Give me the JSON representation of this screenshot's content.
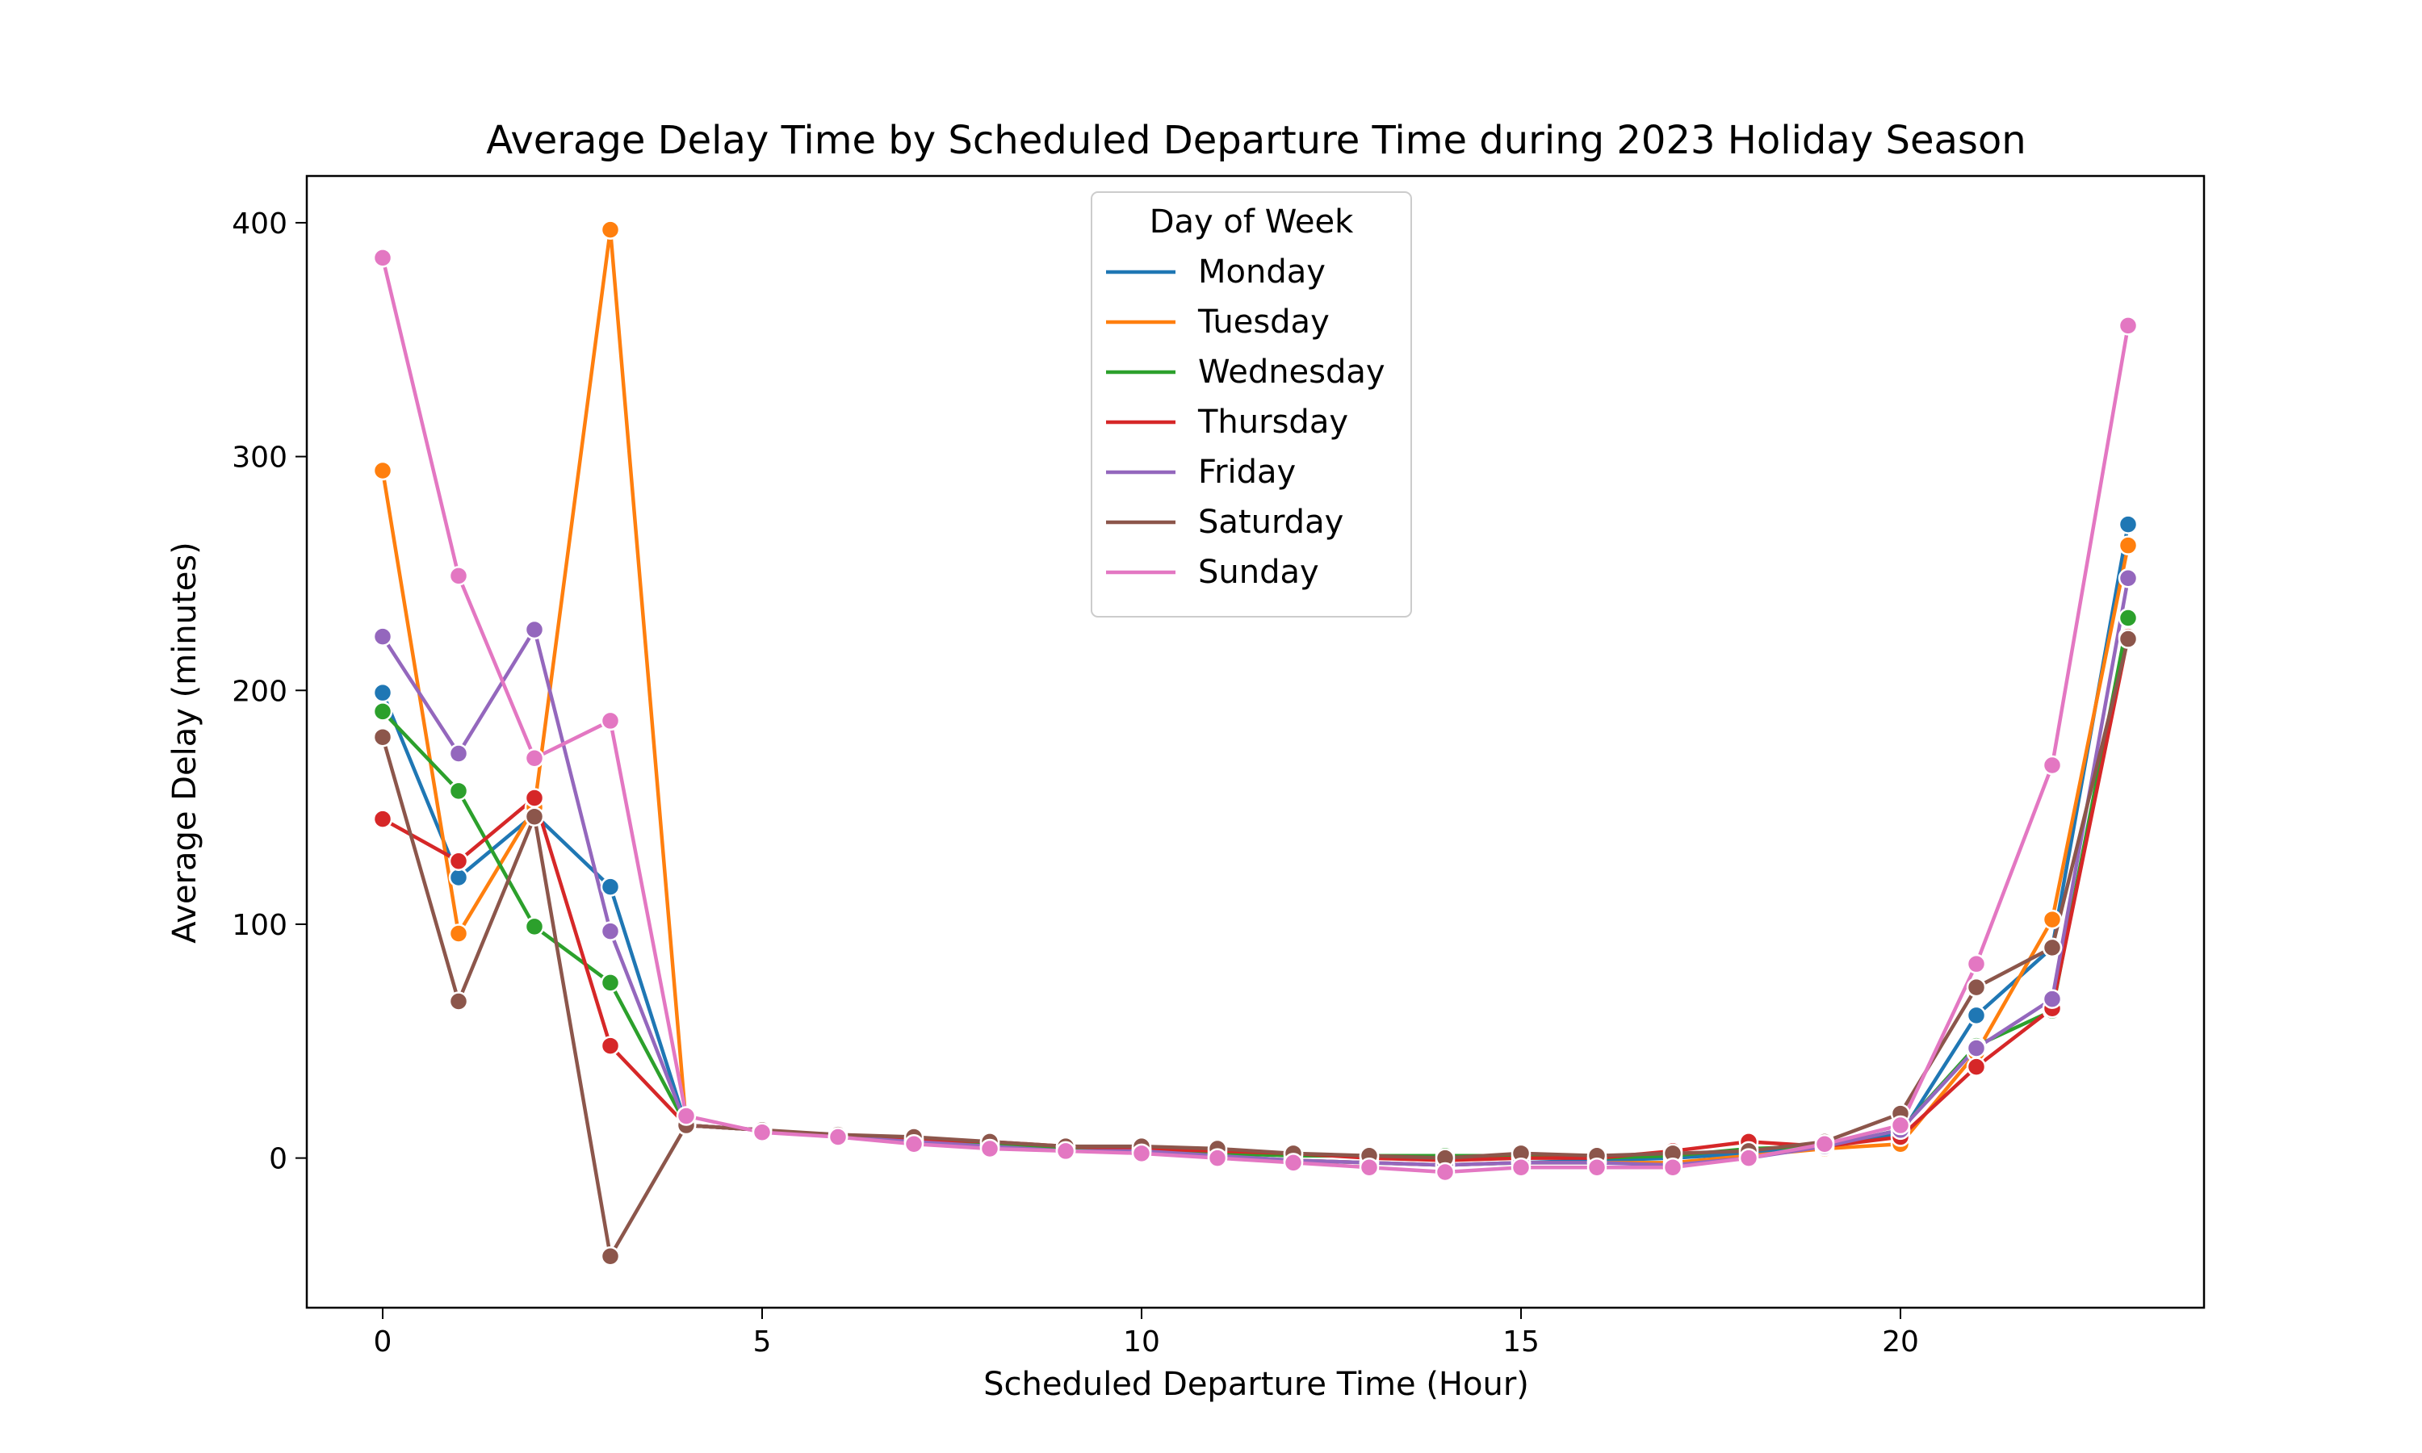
{
  "chart_data": {
    "type": "line",
    "title": "Average Delay Time by Scheduled Departure Time during 2023 Holiday Season",
    "xlabel": "Scheduled Departure Time (Hour)",
    "ylabel": "Average Delay (minutes)",
    "xlim": [
      -1,
      24
    ],
    "ylim": [
      -64,
      420
    ],
    "xticks": [
      0,
      5,
      10,
      15,
      20
    ],
    "yticks": [
      0,
      100,
      200,
      300,
      400
    ],
    "legend_title": "Day of Week",
    "legend_position": "upper center",
    "grid": false,
    "x": [
      0,
      1,
      2,
      3,
      4,
      5,
      6,
      7,
      8,
      9,
      10,
      11,
      12,
      13,
      14,
      15,
      16,
      17,
      18,
      19,
      20,
      21,
      22,
      23
    ],
    "series": [
      {
        "name": "Monday",
        "color": "#1f77b4",
        "values": [
          199,
          120,
          147,
          116,
          14,
          12,
          9,
          7,
          5,
          3,
          3,
          1,
          -1,
          -2,
          -3,
          -2,
          -1,
          0,
          2,
          6,
          10,
          61,
          90,
          271
        ]
      },
      {
        "name": "Tuesday",
        "color": "#ff7f0e",
        "values": [
          294,
          96,
          150,
          397,
          14,
          12,
          9,
          7,
          5,
          3,
          3,
          0,
          -1,
          -2,
          -3,
          -2,
          -2,
          -2,
          1,
          4,
          6,
          45,
          102,
          262
        ]
      },
      {
        "name": "Wednesday",
        "color": "#2ca02c",
        "values": [
          191,
          157,
          99,
          75,
          14,
          12,
          9,
          8,
          6,
          4,
          4,
          2,
          1,
          1,
          1,
          1,
          0,
          1,
          4,
          5,
          12,
          48,
          63,
          231
        ]
      },
      {
        "name": "Thursday",
        "color": "#d62728",
        "values": [
          145,
          127,
          154,
          48,
          14,
          12,
          9,
          8,
          7,
          5,
          4,
          3,
          2,
          0,
          -1,
          0,
          0,
          3,
          7,
          5,
          9,
          39,
          64,
          223
        ]
      },
      {
        "name": "Friday",
        "color": "#9467bd",
        "values": [
          223,
          173,
          226,
          97,
          14,
          12,
          9,
          7,
          5,
          3,
          3,
          1,
          -1,
          -2,
          -3,
          -2,
          -2,
          -3,
          0,
          5,
          12,
          47,
          68,
          248
        ]
      },
      {
        "name": "Saturday",
        "color": "#8c564b",
        "values": [
          180,
          67,
          146,
          -42,
          14,
          12,
          10,
          9,
          7,
          5,
          5,
          4,
          2,
          1,
          0,
          2,
          1,
          2,
          3,
          7,
          19,
          73,
          90,
          222
        ]
      },
      {
        "name": "Sunday",
        "color": "#e377c2",
        "values": [
          385,
          249,
          171,
          187,
          18,
          11,
          9,
          6,
          4,
          3,
          2,
          0,
          -2,
          -4,
          -6,
          -4,
          -4,
          -4,
          0,
          6,
          14,
          83,
          168,
          356
        ]
      }
    ]
  }
}
